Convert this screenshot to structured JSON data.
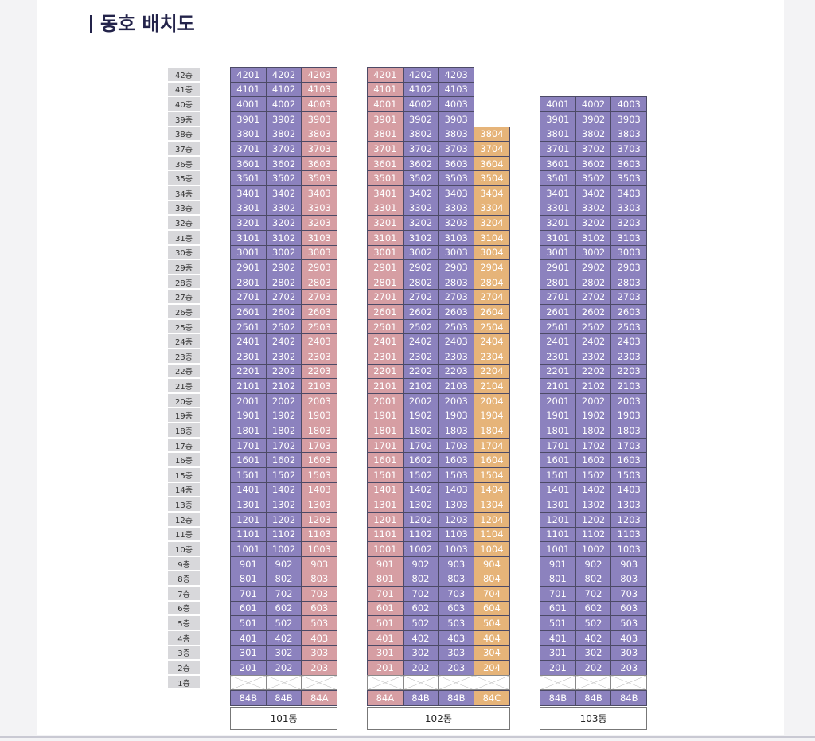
{
  "header": {
    "title": "동호 배치도"
  },
  "floors": [
    "42층",
    "41층",
    "40층",
    "39층",
    "38층",
    "37층",
    "36층",
    "35층",
    "34층",
    "33층",
    "32층",
    "31층",
    "30층",
    "29층",
    "28층",
    "27층",
    "26층",
    "25층",
    "24층",
    "23층",
    "22층",
    "21층",
    "20층",
    "19층",
    "18층",
    "17층",
    "16층",
    "15층",
    "14층",
    "13층",
    "12층",
    "11층",
    "10층",
    "9층",
    "8층",
    "7층",
    "6층",
    "5층",
    "4층",
    "3층",
    "2층",
    "1층"
  ],
  "buildings": [
    {
      "name": "101동",
      "columns": [
        {
          "type": "84B",
          "color": "#8c82be",
          "units": [
            "4201",
            "4101",
            "4001",
            "3901",
            "3801",
            "3701",
            "3601",
            "3501",
            "3401",
            "3301",
            "3201",
            "3101",
            "3001",
            "2901",
            "2801",
            "2701",
            "2601",
            "2501",
            "2401",
            "2301",
            "2201",
            "2101",
            "2001",
            "1901",
            "1801",
            "1701",
            "1601",
            "1501",
            "1401",
            "1301",
            "1201",
            "1101",
            "1001",
            "901",
            "801",
            "701",
            "601",
            "501",
            "401",
            "301",
            "201"
          ]
        },
        {
          "type": "84B",
          "color": "#8c82be",
          "units": [
            "4202",
            "4102",
            "4002",
            "3902",
            "3802",
            "3702",
            "3602",
            "3502",
            "3402",
            "3302",
            "3202",
            "3102",
            "3002",
            "2902",
            "2802",
            "2702",
            "2602",
            "2502",
            "2402",
            "2302",
            "2202",
            "2102",
            "2002",
            "1902",
            "1802",
            "1702",
            "1602",
            "1502",
            "1402",
            "1302",
            "1202",
            "1102",
            "1002",
            "902",
            "802",
            "702",
            "602",
            "502",
            "402",
            "302",
            "202"
          ]
        },
        {
          "type": "84A",
          "color": "#d69ea3",
          "units": [
            "4203",
            "4103",
            "4003",
            "3903",
            "3803",
            "3703",
            "3603",
            "3503",
            "3403",
            "3303",
            "3203",
            "3103",
            "3003",
            "2903",
            "2803",
            "2703",
            "2603",
            "2503",
            "2403",
            "2303",
            "2203",
            "2103",
            "2003",
            "1903",
            "1803",
            "1703",
            "1603",
            "1503",
            "1403",
            "1303",
            "1203",
            "1103",
            "1003",
            "903",
            "803",
            "703",
            "603",
            "503",
            "403",
            "303",
            "203"
          ]
        }
      ]
    },
    {
      "name": "102동",
      "columns": [
        {
          "type": "84A",
          "color": "#d69ea3",
          "units": [
            "4201",
            "4101",
            "4001",
            "3901",
            "3801",
            "3701",
            "3601",
            "3501",
            "3401",
            "3301",
            "3201",
            "3101",
            "3001",
            "2901",
            "2801",
            "2701",
            "2601",
            "2501",
            "2401",
            "2301",
            "2201",
            "2101",
            "2001",
            "1901",
            "1801",
            "1701",
            "1601",
            "1501",
            "1401",
            "1301",
            "1201",
            "1101",
            "1001",
            "901",
            "801",
            "701",
            "601",
            "501",
            "401",
            "301",
            "201"
          ]
        },
        {
          "type": "84B",
          "color": "#8c82be",
          "units": [
            "4202",
            "4102",
            "4002",
            "3902",
            "3802",
            "3702",
            "3602",
            "3502",
            "3402",
            "3302",
            "3202",
            "3102",
            "3002",
            "2902",
            "2802",
            "2702",
            "2602",
            "2502",
            "2402",
            "2302",
            "2202",
            "2102",
            "2002",
            "1902",
            "1802",
            "1702",
            "1602",
            "1502",
            "1402",
            "1302",
            "1202",
            "1102",
            "1002",
            "902",
            "802",
            "702",
            "602",
            "502",
            "402",
            "302",
            "202"
          ]
        },
        {
          "type": "84B",
          "color": "#8c82be",
          "units": [
            "4203",
            "4103",
            "4003",
            "3903",
            "3803",
            "3703",
            "3603",
            "3503",
            "3403",
            "3303",
            "3203",
            "3103",
            "3003",
            "2903",
            "2803",
            "2703",
            "2603",
            "2503",
            "2403",
            "2303",
            "2203",
            "2103",
            "2003",
            "1903",
            "1803",
            "1703",
            "1603",
            "1503",
            "1403",
            "1303",
            "1203",
            "1103",
            "1003",
            "903",
            "803",
            "703",
            "603",
            "503",
            "403",
            "303",
            "203"
          ]
        },
        {
          "type": "84C",
          "color": "#e6b479",
          "units": [
            "3804",
            "3704",
            "3604",
            "3504",
            "3404",
            "3304",
            "3204",
            "3104",
            "3004",
            "2904",
            "2804",
            "2704",
            "2604",
            "2504",
            "2404",
            "2304",
            "2204",
            "2104",
            "2004",
            "1904",
            "1804",
            "1704",
            "1604",
            "1504",
            "1404",
            "1304",
            "1204",
            "1104",
            "1004",
            "904",
            "804",
            "704",
            "604",
            "504",
            "404",
            "304",
            "204"
          ]
        }
      ]
    },
    {
      "name": "103동",
      "columns": [
        {
          "type": "84B",
          "color": "#8c82be",
          "units": [
            "4001",
            "3901",
            "3801",
            "3701",
            "3601",
            "3501",
            "3401",
            "3301",
            "3201",
            "3101",
            "3001",
            "2901",
            "2801",
            "2701",
            "2601",
            "2501",
            "2401",
            "2301",
            "2201",
            "2101",
            "2001",
            "1901",
            "1801",
            "1701",
            "1601",
            "1501",
            "1401",
            "1301",
            "1201",
            "1101",
            "1001",
            "901",
            "801",
            "701",
            "601",
            "501",
            "401",
            "301",
            "201"
          ]
        },
        {
          "type": "84B",
          "color": "#8c82be",
          "units": [
            "4002",
            "3902",
            "3802",
            "3702",
            "3602",
            "3502",
            "3402",
            "3302",
            "3202",
            "3102",
            "3002",
            "2902",
            "2802",
            "2702",
            "2602",
            "2502",
            "2402",
            "2302",
            "2202",
            "2102",
            "2002",
            "1902",
            "1802",
            "1702",
            "1602",
            "1502",
            "1402",
            "1302",
            "1202",
            "1102",
            "1002",
            "902",
            "802",
            "702",
            "602",
            "502",
            "402",
            "302",
            "202"
          ]
        },
        {
          "type": "84B",
          "color": "#8c82be",
          "units": [
            "4003",
            "3903",
            "3803",
            "3703",
            "3603",
            "3503",
            "3403",
            "3303",
            "3203",
            "3103",
            "3003",
            "2903",
            "2803",
            "2703",
            "2603",
            "2503",
            "2403",
            "2303",
            "2203",
            "2103",
            "2003",
            "1903",
            "1803",
            "1703",
            "1603",
            "1503",
            "1403",
            "1303",
            "1203",
            "1103",
            "1003",
            "903",
            "803",
            "703",
            "603",
            "503",
            "403",
            "303",
            "203"
          ]
        }
      ]
    }
  ]
}
